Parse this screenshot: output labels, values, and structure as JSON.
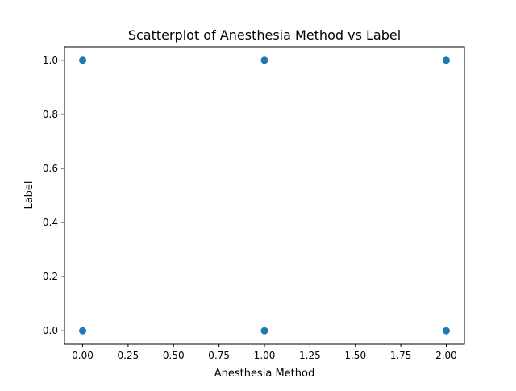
{
  "chart_data": {
    "type": "scatter",
    "title": "Scatterplot of Anesthesia Method vs Label",
    "xlabel": "Anesthesia Method",
    "ylabel": "Label",
    "xlim": [
      -0.1,
      2.1
    ],
    "ylim": [
      -0.05,
      1.05
    ],
    "xticks": [
      0.0,
      0.25,
      0.5,
      0.75,
      1.0,
      1.25,
      1.5,
      1.75,
      2.0
    ],
    "xtick_labels": [
      "0.00",
      "0.25",
      "0.50",
      "0.75",
      "1.00",
      "1.25",
      "1.50",
      "1.75",
      "2.00"
    ],
    "yticks": [
      0.0,
      0.2,
      0.4,
      0.6,
      0.8,
      1.0
    ],
    "ytick_labels": [
      "0.0",
      "0.2",
      "0.4",
      "0.6",
      "0.8",
      "1.0"
    ],
    "grid": false,
    "marker_color": "#1f77b4",
    "points": [
      {
        "x": 0,
        "y": 1
      },
      {
        "x": 1,
        "y": 1
      },
      {
        "x": 2,
        "y": 1
      },
      {
        "x": 0,
        "y": 0
      },
      {
        "x": 1,
        "y": 0
      },
      {
        "x": 2,
        "y": 0
      }
    ]
  }
}
